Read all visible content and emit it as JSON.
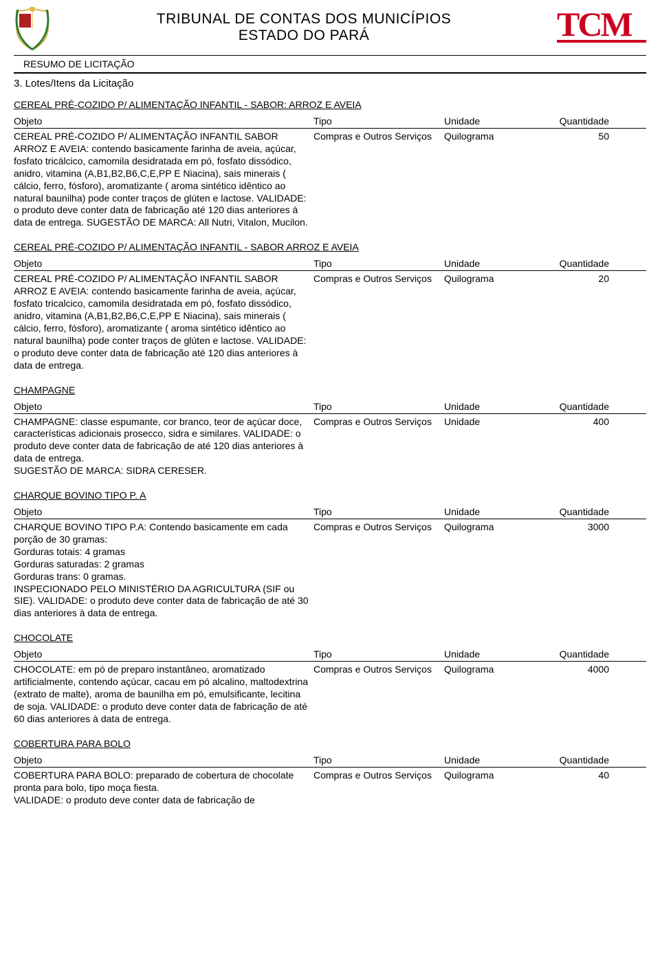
{
  "header": {
    "title_line1": "TRIBUNAL DE CONTAS DOS MUNICÍPIOS",
    "title_line2": "ESTADO DO PARÁ",
    "subtitle": "RESUMO DE LICITAÇÃO",
    "section": "3. Lotes/Itens da Licitação"
  },
  "columns": {
    "objeto": "Objeto",
    "tipo": "Tipo",
    "unidade": "Unidade",
    "quantidade": "Quantidade"
  },
  "colors": {
    "text": "#000000",
    "tcm_red": "#cc0020",
    "shield_gold": "#d9b84a",
    "shield_red": "#b02020",
    "shield_green": "#2e7d32",
    "shield_white": "#ffffff",
    "rule": "#000000"
  },
  "items": [
    {
      "title": "CEREAL PRÉ-COZIDO P/ ALIMENTAÇÃO INFANTIL - SABOR: ARROZ E AVEIA",
      "desc": "CEREAL PRÉ-COZIDO P/ ALIMENTAÇÃO INFANTIL SABOR ARROZ E AVEIA: contendo basicamente farinha de aveia, açúcar, fosfato tricálcico, camomila desidratada em pó, fosfato dissódico, anidro, vitamina (A,B1,B2,B6,C,E,PP E Niacina), sais minerais ( cálcio, ferro, fósforo), aromatizante ( aroma sintético idêntico ao natural baunilha) pode conter traços de glúten e lactose.   VALIDADE: o produto deve conter data de fabricação até 120 dias anteriores à data de entrega. SUGESTÃO DE MARCA: All Nutri, Vitalon, Mucilon.",
      "tipo": "Compras e Outros Serviços",
      "unidade": "Quilograma",
      "quantidade": "50"
    },
    {
      "title": "CEREAL PRÉ-COZIDO P/ ALIMENTAÇÃO INFANTIL - SABOR ARROZ E AVEIA",
      "desc": "CEREAL PRÉ-COZIDO P/ ALIMENTAÇÃO INFANTIL SABOR ARROZ E AVEIA: contendo basicamente farinha de aveia, açúcar, fosfato tricalcico, camomila desidratada em pó, fosfato dissódico, anidro, vitamina (A,B1,B2,B6,C,E,PP E Niacina), sais minerais ( cálcio, ferro, fósforo), aromatizante ( aroma sintético idêntico ao natural baunilha) pode conter traços de glúten e lactose.   VALIDADE: o produto deve conter data de fabricação até 120 dias anteriores à data de entrega.",
      "tipo": "Compras e Outros Serviços",
      "unidade": "Quilograma",
      "quantidade": "20"
    },
    {
      "title": "CHAMPAGNE",
      "desc": "CHAMPAGNE: classe espumante, cor branco, teor de açúcar doce, características adicionais prosecco, sidra e similares. VALIDADE: o produto deve conter data de fabricação de até 120 dias anteriores à data de entrega.\nSUGESTÃO DE MARCA: SIDRA CERESER.",
      "tipo": "Compras e Outros Serviços",
      "unidade": "Unidade",
      "quantidade": "400"
    },
    {
      "title": "CHARQUE BOVINO TIPO P. A",
      "desc": "CHARQUE BOVINO TIPO P.A: Contendo basicamente em cada porção de 30 gramas:\nGorduras totais: 4 gramas\nGorduras saturadas: 2 gramas\nGorduras trans:  0 gramas.\nINSPECIONADO PELO MINISTÉRIO DA AGRICULTURA (SIF ou SIE). VALIDADE: o produto deve conter data de fabricação de até 30 dias anteriores à data de entrega.",
      "tipo": "Compras e Outros Serviços",
      "unidade": "Quilograma",
      "quantidade": "3000"
    },
    {
      "title": "CHOCOLATE",
      "desc": "CHOCOLATE: em pó de preparo instantâneo, aromatizado artificialmente, contendo açúcar, cacau em pó alcalino, maltodextrina (extrato de malte), aroma de baunilha em pó, emulsificante, lecitina de soja.   VALIDADE: o produto deve conter data de fabricação de até 60 dias anteriores à data de entrega.",
      "tipo": "Compras e Outros Serviços",
      "unidade": "Quilograma",
      "quantidade": "4000"
    },
    {
      "title": "COBERTURA PARA BOLO",
      "desc": "COBERTURA PARA BOLO: preparado de cobertura de chocolate pronta para bolo, tipo moça fiesta.\nVALIDADE: o produto deve conter data de fabricação de",
      "tipo": "Compras e Outros Serviços",
      "unidade": "Quilograma",
      "quantidade": "40"
    }
  ]
}
